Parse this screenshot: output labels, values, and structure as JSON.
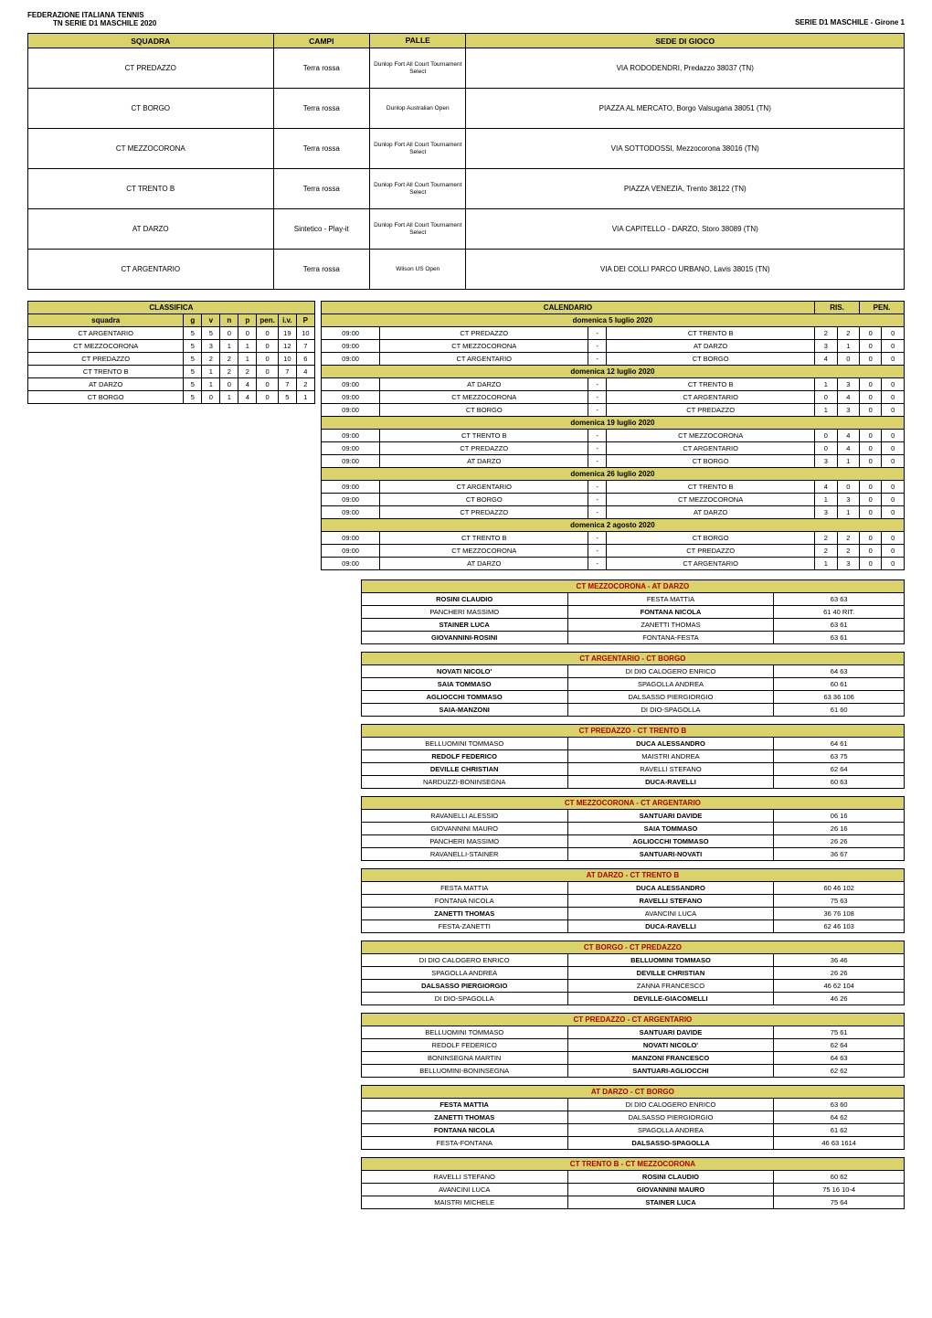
{
  "header": {
    "federation": "FEDERAZIONE ITALIANA TENNIS",
    "series": "TN SERIE D1 MASCHILE 2020",
    "group": "SERIE D1 MASCHILE - Girone 1"
  },
  "venue_table": {
    "headers": {
      "squadra": "SQUADRA",
      "campi": "CAMPI",
      "palle": "PALLE",
      "sede": "SEDE DI GIOCO"
    },
    "rows": [
      {
        "squadra": "CT PREDAZZO",
        "campi": "Terra rossa",
        "palle": "Dunlop Fort All Court Tournament Select",
        "sede": "VIA RODODENDRI, Predazzo 38037 (TN)"
      },
      {
        "squadra": "CT BORGO",
        "campi": "Terra rossa",
        "palle": "Dunlop Australian Open",
        "sede": "PIAZZA AL MERCATO, Borgo Valsugana 38051 (TN)"
      },
      {
        "squadra": "CT MEZZOCORONA",
        "campi": "Terra rossa",
        "palle": "Dunlop Fort All Court Tournament Select",
        "sede": "VIA SOTTODOSSI, Mezzocorona 38016 (TN)"
      },
      {
        "squadra": "CT TRENTO B",
        "campi": "Terra rossa",
        "palle": "Dunlop Fort All Court Tournament Select",
        "sede": "PIAZZA VENEZIA, Trento 38122 (TN)"
      },
      {
        "squadra": "AT DARZO",
        "campi": "Sintetico - Play-it",
        "palle": "Dunlop Fort All Court Tournament Select",
        "sede": "VIA CAPITELLO - DARZO, Storo 38089 (TN)"
      },
      {
        "squadra": "CT ARGENTARIO",
        "campi": "Terra rossa",
        "palle": "Wilson US Open",
        "sede": "VIA DEI COLLI PARCO URBANO, Lavis 38015 (TN)"
      }
    ]
  },
  "standings": {
    "title": "CLASSIFICA",
    "headers": [
      "squadra",
      "g",
      "v",
      "n",
      "p",
      "pen.",
      "i.v.",
      "P"
    ],
    "rows": [
      [
        "CT ARGENTARIO",
        "5",
        "5",
        "0",
        "0",
        "0",
        "19",
        "10"
      ],
      [
        "CT MEZZOCORONA",
        "5",
        "3",
        "1",
        "1",
        "0",
        "12",
        "7"
      ],
      [
        "CT PREDAZZO",
        "5",
        "2",
        "2",
        "1",
        "0",
        "10",
        "6"
      ],
      [
        "CT TRENTO B",
        "5",
        "1",
        "2",
        "2",
        "0",
        "7",
        "4"
      ],
      [
        "AT DARZO",
        "5",
        "1",
        "0",
        "4",
        "0",
        "7",
        "2"
      ],
      [
        "CT BORGO",
        "5",
        "0",
        "1",
        "4",
        "0",
        "5",
        "1"
      ]
    ]
  },
  "calendar": {
    "title": "CALENDARIO",
    "ris": "RIS.",
    "pen": "PEN.",
    "days": [
      {
        "label": "domenica 5 luglio 2020",
        "matches": [
          {
            "time": "09:00",
            "home": "CT PREDAZZO",
            "away": "CT TRENTO B",
            "r1": "2",
            "r2": "2",
            "p1": "0",
            "p2": "0"
          },
          {
            "time": "09:00",
            "home": "CT MEZZOCORONA",
            "away": "AT DARZO",
            "r1": "3",
            "r2": "1",
            "p1": "0",
            "p2": "0"
          },
          {
            "time": "09:00",
            "home": "CT ARGENTARIO",
            "away": "CT BORGO",
            "r1": "4",
            "r2": "0",
            "p1": "0",
            "p2": "0"
          }
        ]
      },
      {
        "label": "domenica 12 luglio 2020",
        "matches": [
          {
            "time": "09:00",
            "home": "AT DARZO",
            "away": "CT TRENTO B",
            "r1": "1",
            "r2": "3",
            "p1": "0",
            "p2": "0"
          },
          {
            "time": "09:00",
            "home": "CT MEZZOCORONA",
            "away": "CT ARGENTARIO",
            "r1": "0",
            "r2": "4",
            "p1": "0",
            "p2": "0"
          },
          {
            "time": "09:00",
            "home": "CT BORGO",
            "away": "CT PREDAZZO",
            "r1": "1",
            "r2": "3",
            "p1": "0",
            "p2": "0"
          }
        ]
      },
      {
        "label": "domenica 19 luglio 2020",
        "matches": [
          {
            "time": "09:00",
            "home": "CT TRENTO B",
            "away": "CT MEZZOCORONA",
            "r1": "0",
            "r2": "4",
            "p1": "0",
            "p2": "0"
          },
          {
            "time": "09:00",
            "home": "CT PREDAZZO",
            "away": "CT ARGENTARIO",
            "r1": "0",
            "r2": "4",
            "p1": "0",
            "p2": "0"
          },
          {
            "time": "09:00",
            "home": "AT DARZO",
            "away": "CT BORGO",
            "r1": "3",
            "r2": "1",
            "p1": "0",
            "p2": "0"
          }
        ]
      },
      {
        "label": "domenica 26 luglio 2020",
        "matches": [
          {
            "time": "09:00",
            "home": "CT ARGENTARIO",
            "away": "CT TRENTO B",
            "r1": "4",
            "r2": "0",
            "p1": "0",
            "p2": "0"
          },
          {
            "time": "09:00",
            "home": "CT BORGO",
            "away": "CT MEZZOCORONA",
            "r1": "1",
            "r2": "3",
            "p1": "0",
            "p2": "0"
          },
          {
            "time": "09:00",
            "home": "CT PREDAZZO",
            "away": "AT DARZO",
            "r1": "3",
            "r2": "1",
            "p1": "0",
            "p2": "0"
          }
        ]
      },
      {
        "label": "domenica 2 agosto 2020",
        "matches": [
          {
            "time": "09:00",
            "home": "CT TRENTO B",
            "away": "CT BORGO",
            "r1": "2",
            "r2": "2",
            "p1": "0",
            "p2": "0"
          },
          {
            "time": "09:00",
            "home": "CT MEZZOCORONA",
            "away": "CT PREDAZZO",
            "r1": "2",
            "r2": "2",
            "p1": "0",
            "p2": "0"
          },
          {
            "time": "09:00",
            "home": "AT DARZO",
            "away": "CT ARGENTARIO",
            "r1": "1",
            "r2": "3",
            "p1": "0",
            "p2": "0"
          }
        ]
      }
    ]
  },
  "match_tables": [
    {
      "title": "CT MEZZOCORONA - AT DARZO",
      "rows": [
        {
          "p1": "ROSINI CLAUDIO",
          "p2": "FESTA MATTIA",
          "score": "63 63",
          "w": 1
        },
        {
          "p1": "PANCHERI MASSIMO",
          "p2": "FONTANA NICOLA",
          "score": "61 40 RIT.",
          "w": 2
        },
        {
          "p1": "STAINER LUCA",
          "p2": "ZANETTI THOMAS",
          "score": "63 61",
          "w": 1
        },
        {
          "p1": "GIOVANNINI-ROSINI",
          "p2": "FONTANA-FESTA",
          "score": "63 61",
          "w": 1
        }
      ]
    },
    {
      "title": "CT ARGENTARIO - CT BORGO",
      "rows": [
        {
          "p1": "NOVATI NICOLO'",
          "p2": "DI DIO CALOGERO ENRICO",
          "score": "64 63",
          "w": 1
        },
        {
          "p1": "SAIA TOMMASO",
          "p2": "SPAGOLLA ANDREA",
          "score": "60 61",
          "w": 1
        },
        {
          "p1": "AGLIOCCHI TOMMASO",
          "p2": "DALSASSO PIERGIORGIO",
          "score": "63 36 106",
          "w": 1
        },
        {
          "p1": "SAIA-MANZONI",
          "p2": "DI DIO-SPAGOLLA",
          "score": "61 60",
          "w": 1
        }
      ]
    },
    {
      "title": "CT PREDAZZO - CT TRENTO B",
      "rows": [
        {
          "p1": "BELLUOMINI TOMMASO",
          "p2": "DUCA ALESSANDRO",
          "score": "64 61",
          "w": 2
        },
        {
          "p1": "REDOLF FEDERICO",
          "p2": "MAISTRI ANDREA",
          "score": "63 75",
          "w": 1
        },
        {
          "p1": "DEVILLE CHRISTIAN",
          "p2": "RAVELLI STEFANO",
          "score": "62 64",
          "w": 1
        },
        {
          "p1": "NARDUZZI-BONINSEGNA",
          "p2": "DUCA-RAVELLI",
          "score": "60 63",
          "w": 2
        }
      ]
    },
    {
      "title": "CT MEZZOCORONA - CT ARGENTARIO",
      "rows": [
        {
          "p1": "RAVANELLI ALESSIO",
          "p2": "SANTUARI DAVIDE",
          "score": "06 16",
          "w": 2
        },
        {
          "p1": "GIOVANNINI MAURO",
          "p2": "SAIA TOMMASO",
          "score": "26 16",
          "w": 2
        },
        {
          "p1": "PANCHERI MASSIMO",
          "p2": "AGLIOCCHI TOMMASO",
          "score": "26 26",
          "w": 2
        },
        {
          "p1": "RAVANELLI-STAINER",
          "p2": "SANTUARI-NOVATI",
          "score": "36 67",
          "w": 2
        }
      ]
    },
    {
      "title": "AT DARZO - CT TRENTO B",
      "rows": [
        {
          "p1": "FESTA MATTIA",
          "p2": "DUCA ALESSANDRO",
          "score": "60 46 102",
          "w": 2
        },
        {
          "p1": "FONTANA NICOLA",
          "p2": "RAVELLI STEFANO",
          "score": "75 63",
          "w": 2
        },
        {
          "p1": "ZANETTI THOMAS",
          "p2": "AVANCINI LUCA",
          "score": "36 76 108",
          "w": 1
        },
        {
          "p1": "FESTA-ZANETTI",
          "p2": "DUCA-RAVELLI",
          "score": "62 46 103",
          "w": 2
        }
      ]
    },
    {
      "title": "CT BORGO  - CT PREDAZZO",
      "rows": [
        {
          "p1": "DI DIO CALOGERO ENRICO",
          "p2": "BELLUOMINI TOMMASO",
          "score": "36 46",
          "w": 2
        },
        {
          "p1": "SPAGOLLA ANDREA",
          "p2": "DEVILLE CHRISTIAN",
          "score": "26 26",
          "w": 2
        },
        {
          "p1": "DALSASSO PIERGIORGIO",
          "p2": "ZANNA FRANCESCO",
          "score": "46 62 104",
          "w": 1
        },
        {
          "p1": "DI DIO-SPAGOLLA",
          "p2": "DEVILLE-GIACOMELLI",
          "score": "46 26",
          "w": 2
        }
      ]
    },
    {
      "title": "CT PREDAZZO - CT ARGENTARIO",
      "rows": [
        {
          "p1": "BELLUOMINI TOMMASO",
          "p2": "SANTUARI DAVIDE",
          "score": "75 61",
          "w": 2
        },
        {
          "p1": "REDOLF FEDERICO",
          "p2": "NOVATI NICOLO'",
          "score": "62 64",
          "w": 2
        },
        {
          "p1": "BONINSEGNA MARTIN",
          "p2": "MANZONI FRANCESCO",
          "score": "64 63",
          "w": 2
        },
        {
          "p1": "BELLUOMINI-BONINSEGNA",
          "p2": "SANTUARI-AGLIOCCHI",
          "score": "62 62",
          "w": 2
        }
      ]
    },
    {
      "title": "AT DARZO - CT BORGO",
      "rows": [
        {
          "p1": "FESTA MATTIA",
          "p2": "DI DIO CALOGERO ENRICO",
          "score": "63 60",
          "w": 1
        },
        {
          "p1": "ZANETTI THOMAS",
          "p2": "DALSASSO PIERGIORGIO",
          "score": "64 62",
          "w": 1
        },
        {
          "p1": "FONTANA NICOLA",
          "p2": "SPAGOLLA ANDREA",
          "score": "61 62",
          "w": 1
        },
        {
          "p1": "FESTA-FONTANA",
          "p2": "DALSASSO-SPAGOLLA",
          "score": "46 63 1614",
          "w": 2
        }
      ]
    },
    {
      "title": "CT TRENTO B - CT MEZZOCORONA",
      "rows": [
        {
          "p1": "RAVELLI STEFANO",
          "p2": "ROSINI CLAUDIO",
          "score": "60 62",
          "w": 2
        },
        {
          "p1": "AVANCINI LUCA",
          "p2": "GIOVANNINI MAURO",
          "score": "75 16 10-4",
          "w": 2
        },
        {
          "p1": "MAISTRI MICHELE",
          "p2": "STAINER LUCA",
          "score": "75 64",
          "w": 2
        }
      ]
    }
  ]
}
